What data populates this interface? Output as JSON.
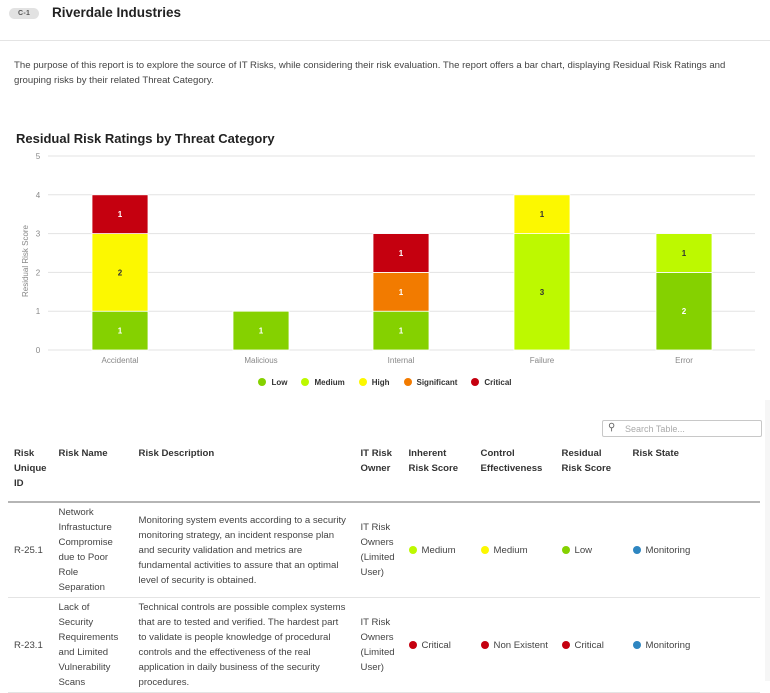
{
  "header": {
    "badge": "C-1",
    "company": "Riverdale Industries"
  },
  "intro": "The purpose of this report is to explore the source of IT Risks, while considering their risk evaluation. The report offers a bar chart, displaying Residual Risk Ratings and grouping risks by their related Threat Category.",
  "colors": {
    "Low": "#85d100",
    "Medium": "#bdf900",
    "High": "#fcf800",
    "Significant": "#f27b00",
    "Critical": "#c5000f",
    "Monitoring": "#2e86c1"
  },
  "chart_data": {
    "type": "bar",
    "stacked": true,
    "title": "Residual Risk Ratings by Threat Category",
    "xlabel": "",
    "ylabel": "Residual Risk Score",
    "ylim": [
      0,
      5
    ],
    "yticks": [
      0,
      1,
      2,
      3,
      4,
      5
    ],
    "grid": true,
    "legend_position": "bottom",
    "categories": [
      "Accidental",
      "Malicious",
      "Internal",
      "Failure",
      "Error"
    ],
    "series": [
      {
        "name": "Low",
        "values": [
          1,
          1,
          1,
          0,
          2
        ]
      },
      {
        "name": "Medium",
        "values": [
          0,
          0,
          0,
          3,
          1
        ]
      },
      {
        "name": "High",
        "values": [
          2,
          0,
          0,
          1,
          0
        ]
      },
      {
        "name": "Significant",
        "values": [
          0,
          0,
          1,
          0,
          0
        ]
      },
      {
        "name": "Critical",
        "values": [
          1,
          0,
          1,
          0,
          0
        ]
      }
    ]
  },
  "search": {
    "placeholder": "Search Table..."
  },
  "table": {
    "headers": [
      "Risk Unique ID",
      "Risk Name",
      "Risk Description",
      "IT Risk Owner",
      "Inherent Risk Score",
      "Control Effectiveness",
      "Residual Risk Score",
      "Risk State"
    ],
    "rows": [
      {
        "id": "R-25.1",
        "name": "Network Infrastucture Compromise due to Poor Role Separation",
        "description": "Monitoring system events according to a security monitoring strategy, an incident response plan and security validation and metrics are fundamental activities to assure that an optimal level of security is obtained.",
        "owner": "IT Risk Owners (Limited User)",
        "inherent": {
          "label": "Medium",
          "color": "#bdf900"
        },
        "control": {
          "label": "Medium",
          "color": "#fcf800"
        },
        "residual": {
          "label": "Low",
          "color": "#85d100"
        },
        "state": {
          "label": "Monitoring",
          "color": "#2e86c1"
        }
      },
      {
        "id": "R-23.1",
        "name": "Lack of Security Requirements and Limited Vulnerability Scans",
        "description": "Technical controls are possible complex systems that are to tested and verified. The hardest part to validate is people knowledge of procedural controls and the effectiveness of the real application in daily business of the security procedures.",
        "owner": "IT Risk Owners (Limited User)",
        "inherent": {
          "label": "Critical",
          "color": "#c5000f"
        },
        "control": {
          "label": "Non Existent",
          "color": "#c5000f"
        },
        "residual": {
          "label": "Critical",
          "color": "#c5000f"
        },
        "state": {
          "label": "Monitoring",
          "color": "#2e86c1"
        }
      }
    ]
  }
}
